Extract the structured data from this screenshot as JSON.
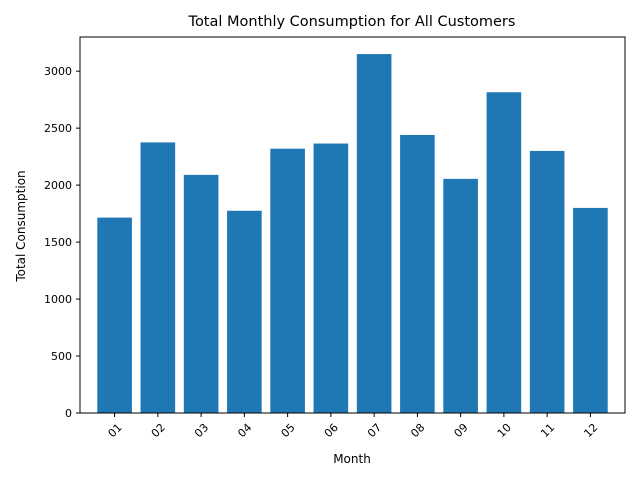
{
  "chart_data": {
    "type": "bar",
    "title": "Total Monthly Consumption for All Customers",
    "xlabel": "Month",
    "ylabel": "Total Consumption",
    "categories": [
      "01",
      "02",
      "03",
      "04",
      "05",
      "06",
      "07",
      "08",
      "09",
      "10",
      "11",
      "12"
    ],
    "values": [
      1715,
      2375,
      2090,
      1775,
      2320,
      2365,
      3150,
      2440,
      2055,
      2815,
      2300,
      1800
    ],
    "ylim": [
      0,
      3300
    ],
    "yticks": [
      0,
      500,
      1000,
      1500,
      2000,
      2500,
      3000
    ],
    "grid": false,
    "bar_color": "#1f77b4"
  }
}
